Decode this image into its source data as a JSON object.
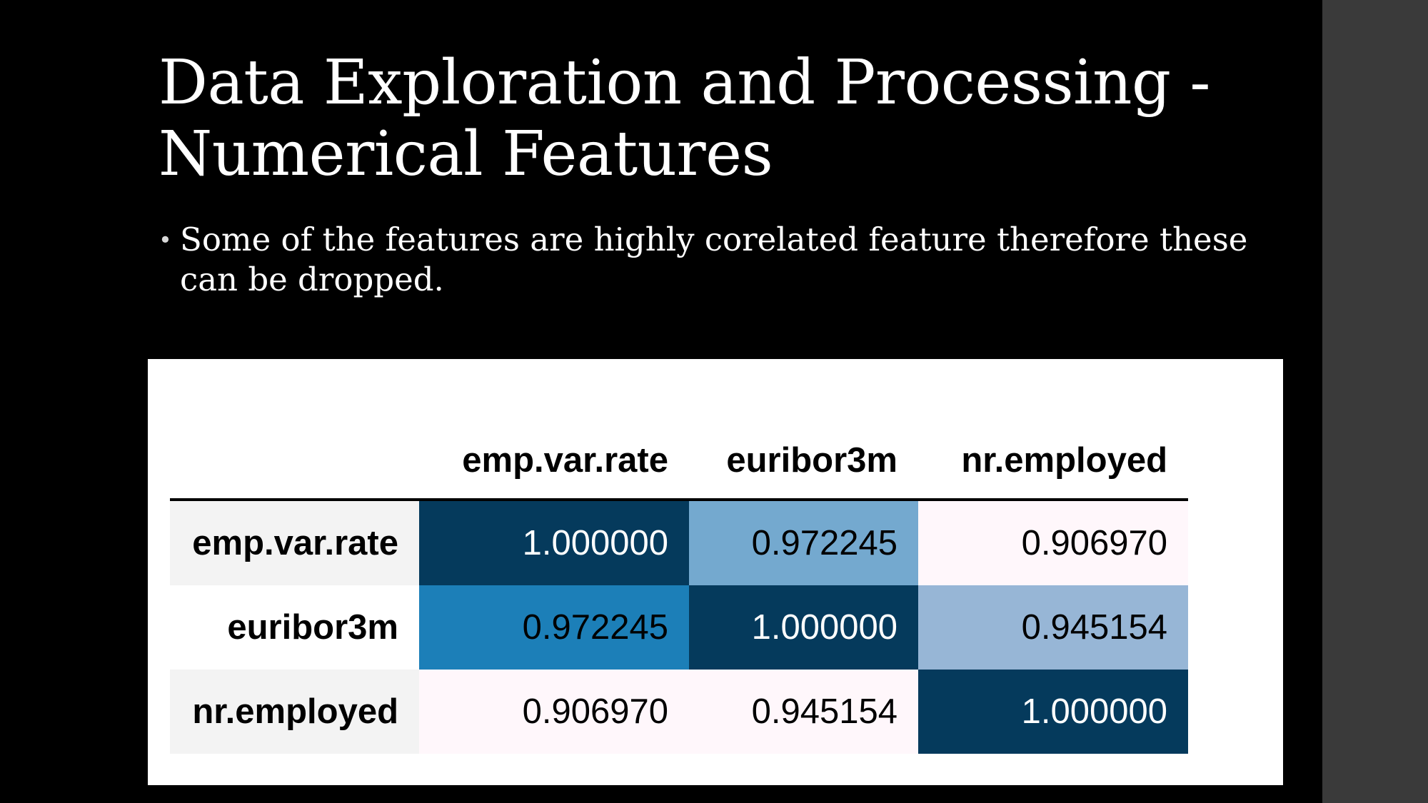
{
  "slide": {
    "title_lines": [
      "Data Exploration and Processing -",
      "Numerical Features"
    ],
    "bullets": [
      "Some of the features are highly corelated feature therefore these can be dropped."
    ]
  },
  "table": {
    "columns": [
      "emp.var.rate",
      "euribor3m",
      "nr.employed"
    ],
    "rows": [
      {
        "label": "emp.var.rate",
        "values": [
          "1.000000",
          "0.972245",
          "0.906970"
        ],
        "colors": [
          "#053a5c",
          "#74a9cf",
          "#fff7fb"
        ]
      },
      {
        "label": "euribor3m",
        "values": [
          "0.972245",
          "1.000000",
          "0.945154"
        ],
        "colors": [
          "#1c7fb8",
          "#053a5c",
          "#97b6d6"
        ]
      },
      {
        "label": "nr.employed",
        "values": [
          "0.906970",
          "0.945154",
          "1.000000"
        ],
        "colors": [
          "#fff7fb",
          "#fff7fb",
          "#053a5c"
        ]
      }
    ]
  },
  "chart_data": {
    "type": "heatmap",
    "x": [
      "emp.var.rate",
      "euribor3m",
      "nr.employed"
    ],
    "y": [
      "emp.var.rate",
      "euribor3m",
      "nr.employed"
    ],
    "z": [
      [
        1.0,
        0.972245,
        0.90697
      ],
      [
        0.972245,
        1.0,
        0.945154
      ],
      [
        0.90697,
        0.945154,
        1.0
      ]
    ]
  },
  "colors": {
    "slide_background": "#000000",
    "side_panel": "#3a3a3a",
    "table_background": "#ffffff",
    "dark_cell": "#053a5c"
  }
}
